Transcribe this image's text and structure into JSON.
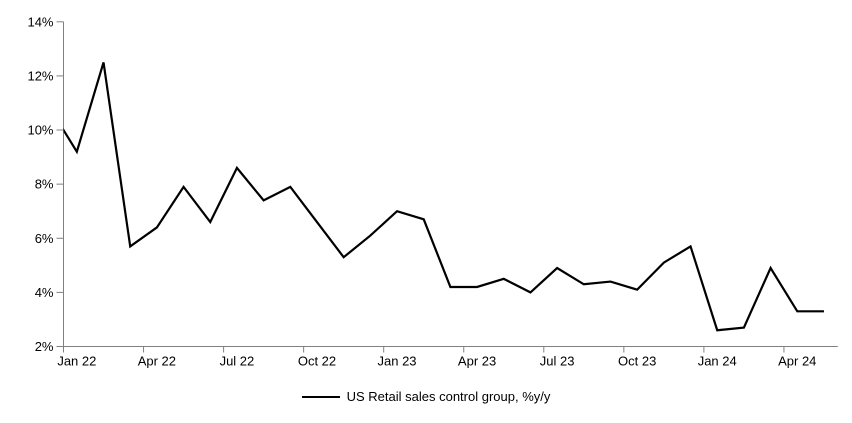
{
  "chart_data": {
    "type": "line",
    "title": "",
    "xlabel": "",
    "ylabel": "",
    "x": [
      "Dec 21",
      "Jan 22",
      "Feb 22",
      "Mar 22",
      "Apr 22",
      "May 22",
      "Jun 22",
      "Jul 22",
      "Aug 22",
      "Sep 22",
      "Oct 22",
      "Nov 22",
      "Dec 22",
      "Jan 23",
      "Feb 23",
      "Mar 23",
      "Apr 23",
      "May 23",
      "Jun 23",
      "Jul 23",
      "Aug 23",
      "Sep 23",
      "Oct 23",
      "Nov 23",
      "Dec 23",
      "Jan 24",
      "Feb 24",
      "Mar 24",
      "Apr 24",
      "May 24"
    ],
    "series": [
      {
        "name": "US Retail sales control group, %y/y",
        "color": "#000000",
        "values": [
          10.8,
          9.2,
          12.5,
          5.7,
          6.4,
          7.9,
          6.6,
          8.6,
          7.4,
          7.9,
          6.6,
          5.3,
          6.1,
          7.0,
          6.7,
          4.2,
          4.2,
          4.5,
          4.0,
          4.9,
          4.3,
          4.4,
          4.1,
          5.1,
          5.7,
          2.6,
          2.7,
          4.9,
          3.3,
          3.3
        ]
      }
    ],
    "ylim": [
      2,
      14
    ],
    "y_tick_labels": [
      "2%",
      "4%",
      "6%",
      "8%",
      "10%",
      "12%",
      "14%"
    ],
    "x_tick_labels": [
      "Jan 22",
      "Apr 22",
      "Jul 22",
      "Oct 22",
      "Jan 23",
      "Apr 23",
      "Jul 23",
      "Oct 23",
      "Jan 24",
      "Apr 24"
    ],
    "x_tick_interval_months": 3,
    "grid": false,
    "legend_position": "bottom",
    "axis_color": "#808080",
    "text_color": "#000000",
    "note": "First point (Dec 21) lies left of the y-axis and is clipped at the plot edge"
  },
  "legend": {
    "label": "US Retail sales control group, %y/y"
  }
}
